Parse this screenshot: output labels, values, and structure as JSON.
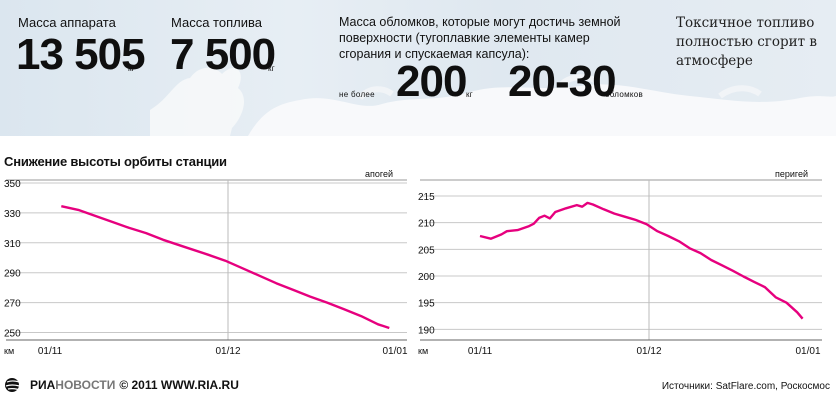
{
  "header": {
    "mass_label": "Масса аппарата",
    "mass_value": "13 505",
    "mass_unit": "кг",
    "fuel_label": "Масса топлива",
    "fuel_value": "7 500",
    "fuel_unit": "кг",
    "debris_text": "Масса обломков, которые могут достичь земной поверхности (тугоплавкие элементы камер сгорания и спускаемая капсула):",
    "debris_prefix": "не более",
    "debris_mass": "200",
    "debris_mass_unit": "кг",
    "debris_count": "20-30",
    "debris_count_unit": "обломков",
    "toxic_text": "Токсичное топливо полностью сгорит в атмосфере"
  },
  "chart_title": "Снижение высоты орбиты станции",
  "chart_data": [
    {
      "type": "line",
      "title": "апогей",
      "ylabel": "км",
      "ylim": [
        245,
        352
      ],
      "yticks": [
        250,
        270,
        290,
        310,
        330,
        350
      ],
      "xticks": [
        "01/11",
        "01/12",
        "01/01"
      ],
      "x_range": [
        0,
        61
      ],
      "series": [
        {
          "color": "#e6007e",
          "points": [
            [
              2,
              334.5
            ],
            [
              5,
              332
            ],
            [
              8,
              328
            ],
            [
              11,
              324
            ],
            [
              14,
              320
            ],
            [
              17,
              316.5
            ],
            [
              20,
              312
            ],
            [
              24,
              307
            ],
            [
              28,
              302
            ],
            [
              31,
              298
            ],
            [
              34,
              293
            ],
            [
              37,
              288
            ],
            [
              40,
              283
            ],
            [
              43,
              278.5
            ],
            [
              46,
              274
            ],
            [
              49,
              270
            ],
            [
              52,
              265.5
            ],
            [
              55,
              261
            ],
            [
              58,
              255.5
            ],
            [
              60,
              253
            ]
          ]
        }
      ]
    },
    {
      "type": "line",
      "title": "перигей",
      "ylabel": "км",
      "ylim": [
        188,
        218
      ],
      "yticks": [
        190,
        195,
        200,
        205,
        210,
        215
      ],
      "xticks": [
        "01/11",
        "01/12",
        "01/01"
      ],
      "x_range": [
        0,
        61
      ],
      "series": [
        {
          "color": "#e6007e",
          "points": [
            [
              0,
              207.5
            ],
            [
              2,
              207
            ],
            [
              4,
              207.8
            ],
            [
              5,
              208.4
            ],
            [
              7,
              208.6
            ],
            [
              9,
              209.3
            ],
            [
              10,
              209.8
            ],
            [
              11,
              210.9
            ],
            [
              12,
              211.3
            ],
            [
              13,
              210.8
            ],
            [
              14,
              212
            ],
            [
              16,
              212.7
            ],
            [
              18,
              213.3
            ],
            [
              19,
              213
            ],
            [
              20,
              213.7
            ],
            [
              21,
              213.4
            ],
            [
              23,
              212.5
            ],
            [
              25,
              211.7
            ],
            [
              27,
              211.1
            ],
            [
              29,
              210.5
            ],
            [
              31,
              209.7
            ],
            [
              33,
              208.4
            ],
            [
              35,
              207.5
            ],
            [
              37,
              206.5
            ],
            [
              39,
              205.2
            ],
            [
              41,
              204.3
            ],
            [
              43,
              203
            ],
            [
              45,
              202
            ],
            [
              47,
              201
            ],
            [
              49,
              199.9
            ],
            [
              51,
              198.9
            ],
            [
              53,
              197.9
            ],
            [
              55,
              196
            ],
            [
              57,
              195
            ],
            [
              59,
              193.2
            ],
            [
              60,
              192
            ]
          ]
        }
      ]
    }
  ],
  "footer": {
    "logo_a": "РИА",
    "logo_b": "НОВОСТИ",
    "copyright": "© 2011 WWW.RIA.RU",
    "source": "Источники: SatFlare.com, Роскосмос"
  }
}
